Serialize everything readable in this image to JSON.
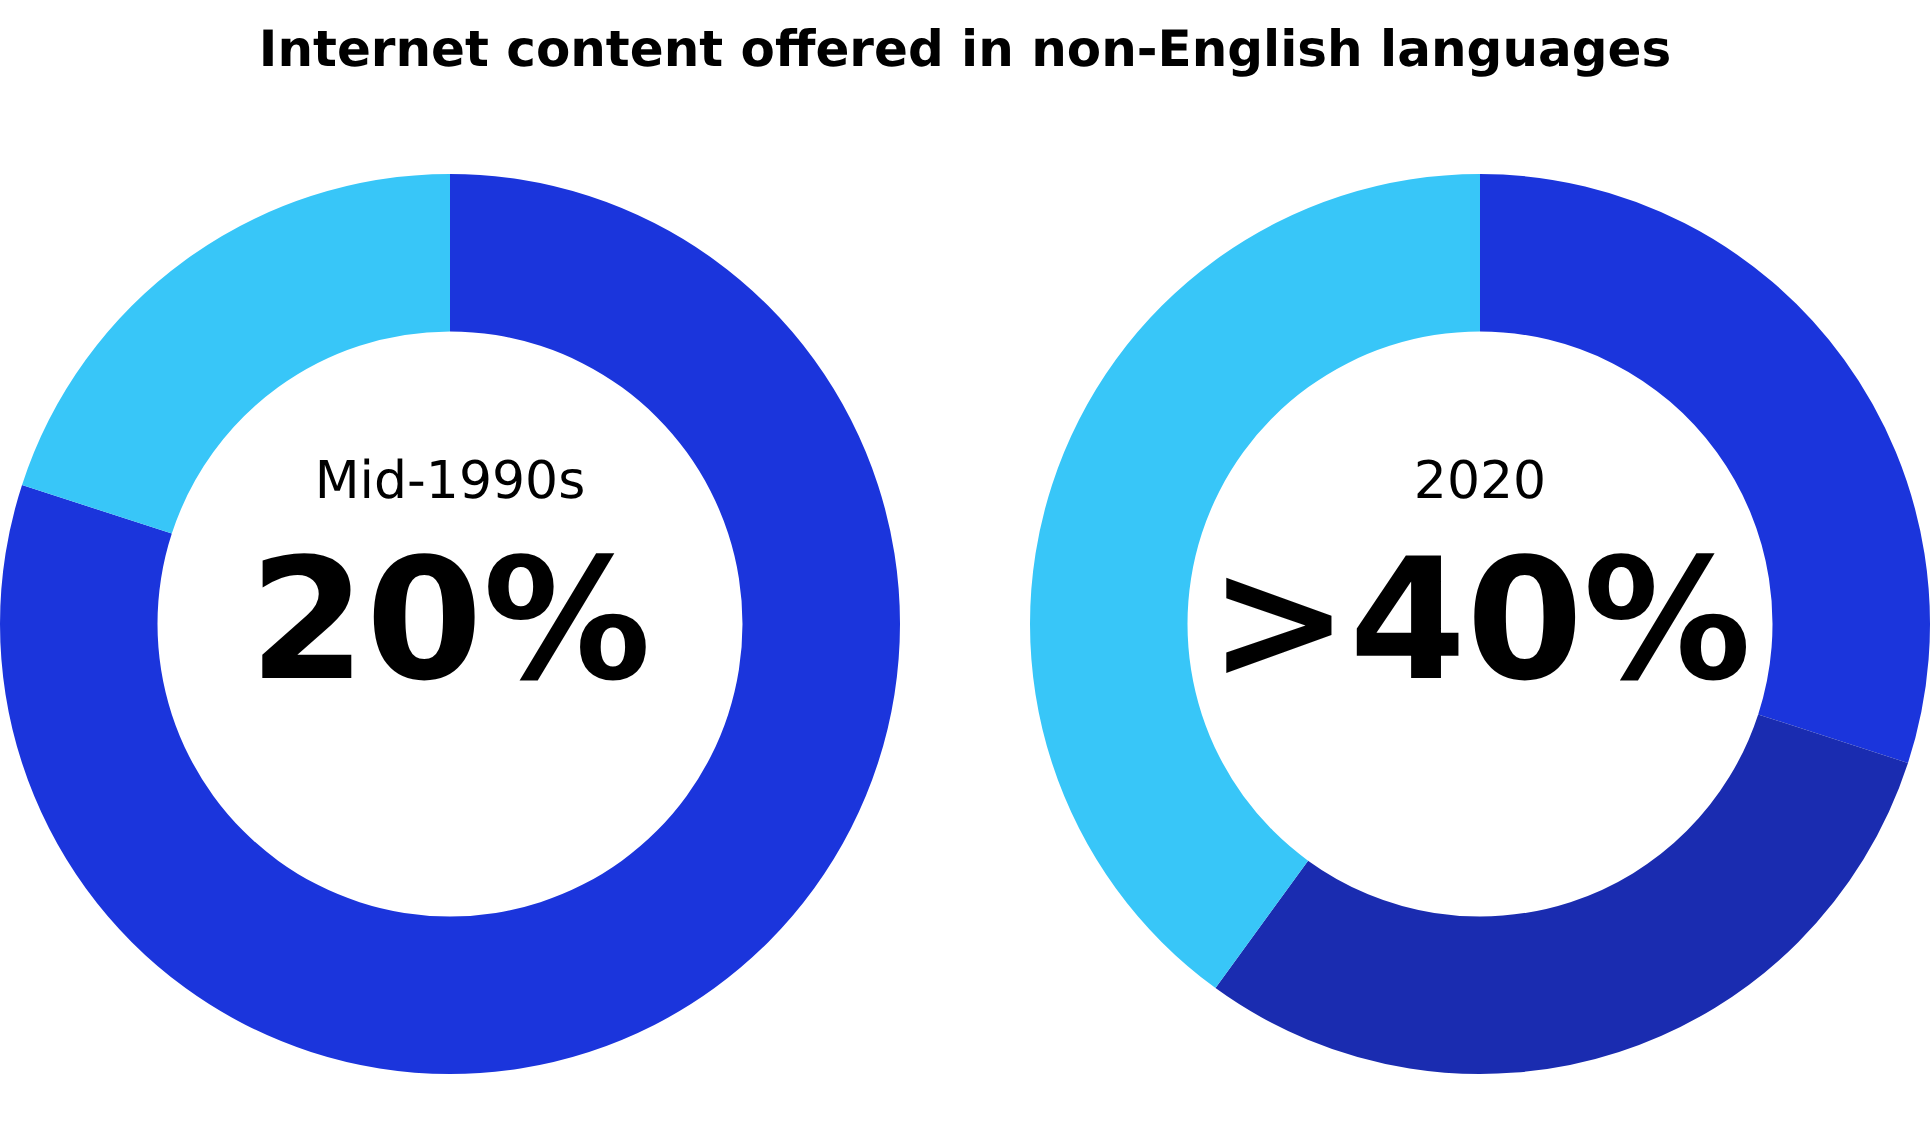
{
  "chart_data": [
    {
      "type": "donut",
      "title": "Internet content offered in non-English languages",
      "categories": [
        null,
        null
      ],
      "values": [
        80,
        20
      ],
      "colors": [
        "#1b35dc",
        "#38c6f8"
      ],
      "annotations": [
        "Mid-1990s",
        "20%"
      ],
      "legend": false
    },
    {
      "type": "donut",
      "categories": [
        null,
        null,
        null
      ],
      "values": [
        30,
        30,
        40
      ],
      "colors": [
        "#1b35dc",
        "#1a2cb0",
        "#38c6f8"
      ],
      "annotations": [
        "2020",
        ">40%"
      ],
      "legend": false
    }
  ]
}
